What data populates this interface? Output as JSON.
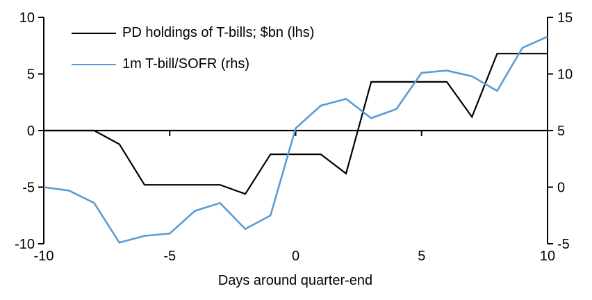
{
  "chart_data": {
    "type": "line",
    "title": "",
    "xlabel": "Days around quarter-end",
    "x_range": [
      -10,
      10
    ],
    "x": [
      -10,
      -9,
      -8,
      -7,
      -6,
      -5,
      -4,
      -3,
      -2,
      -1,
      0,
      1,
      2,
      3,
      4,
      5,
      6,
      7,
      8,
      9,
      10
    ],
    "x_axis": {
      "tick_labels": [
        -10,
        -5,
        0,
        5,
        10
      ],
      "minor_tick_days": [
        -5,
        0,
        5
      ]
    },
    "left_axis": {
      "range": [
        -10,
        10
      ],
      "ticks": [
        10,
        5,
        0,
        -5,
        -10
      ]
    },
    "right_axis": {
      "range": [
        -5,
        15
      ],
      "ticks": [
        15,
        10,
        5,
        0,
        -5
      ]
    },
    "grid": false,
    "legend_position": "top-left",
    "series": [
      {
        "name": "PD holdings of T-bills; $bn (lhs)",
        "axis": "left",
        "color": "#000000",
        "stroke_width": 2.2,
        "values": [
          0,
          0,
          0,
          -1.2,
          -4.8,
          -4.8,
          -4.8,
          -4.8,
          -5.6,
          -2.1,
          -2.1,
          -2.1,
          -3.8,
          4.3,
          4.3,
          4.3,
          4.3,
          1.2,
          6.8,
          6.8,
          6.8
        ]
      },
      {
        "name": "1m T-bill/SOFR (rhs)",
        "axis": "right",
        "color": "#5B9BD5",
        "stroke_width": 2.6,
        "values": [
          0.0,
          -0.3,
          -1.4,
          -4.9,
          -4.3,
          -4.1,
          -2.1,
          -1.4,
          -3.7,
          -2.5,
          5.2,
          7.2,
          7.8,
          6.1,
          6.9,
          10.1,
          10.3,
          9.8,
          8.5,
          12.3,
          13.3
        ]
      }
    ]
  }
}
